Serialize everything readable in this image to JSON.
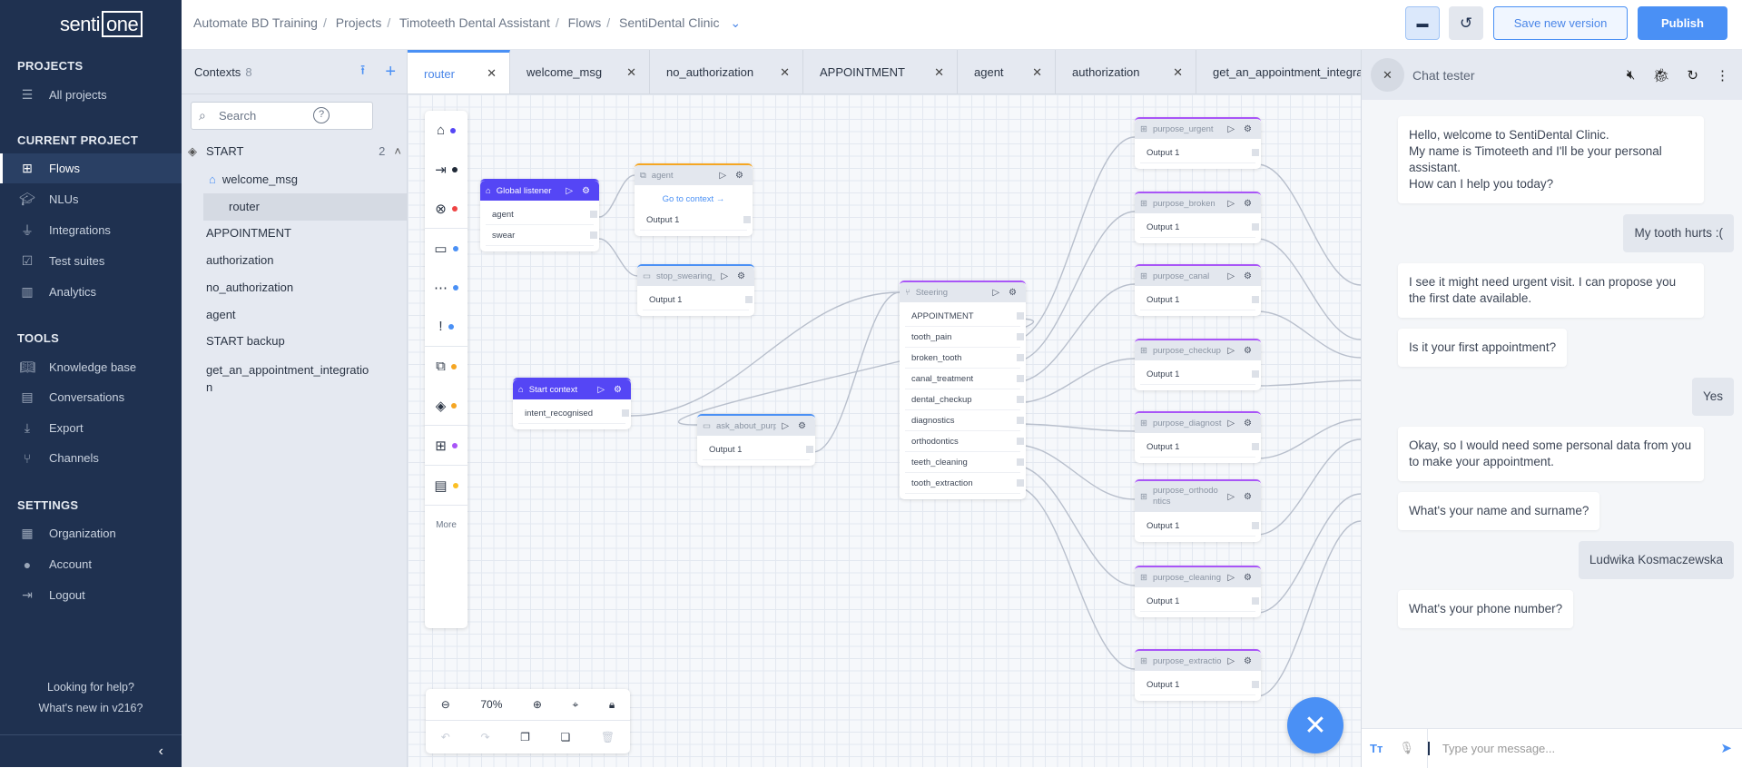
{
  "brand": {
    "logo_text_a": "senti",
    "logo_text_b": "one"
  },
  "sidebar": {
    "projects_heading": "PROJECTS",
    "all_projects": "All projects",
    "current_heading": "CURRENT PROJECT",
    "current_items": [
      {
        "label": "Flows",
        "icon": "flows-icon"
      },
      {
        "label": "NLUs",
        "icon": "graduation-cap-icon"
      },
      {
        "label": "Integrations",
        "icon": "plug-icon"
      },
      {
        "label": "Test suites",
        "icon": "test-suites-icon"
      },
      {
        "label": "Analytics",
        "icon": "analytics-icon"
      }
    ],
    "tools_heading": "TOOLS",
    "tools_items": [
      {
        "label": "Knowledge base",
        "icon": "book-icon"
      },
      {
        "label": "Conversations",
        "icon": "chat-icon"
      },
      {
        "label": "Export",
        "icon": "download-icon"
      },
      {
        "label": "Channels",
        "icon": "channels-icon"
      }
    ],
    "settings_heading": "SETTINGS",
    "settings_items": [
      {
        "label": "Organization",
        "icon": "building-icon"
      },
      {
        "label": "Account",
        "icon": "user-icon"
      },
      {
        "label": "Logout",
        "icon": "logout-icon"
      }
    ],
    "help": "Looking for help?",
    "whats_new": "What's new in v216?"
  },
  "header": {
    "breadcrumb": [
      "Automate BD Training",
      "Projects",
      "Timoteeth Dental Assistant",
      "Flows",
      "SentiDental Clinic"
    ],
    "save_label": "Save new version",
    "publish_label": "Publish"
  },
  "contexts": {
    "title": "Contexts",
    "count": "8",
    "search_placeholder": "Search",
    "group": "START",
    "group_count": "2",
    "group_items": [
      "welcome_msg",
      "router"
    ],
    "items": [
      "APPOINTMENT",
      "authorization",
      "no_authorization",
      "agent",
      "START backup",
      "get_an_appointment_integratio",
      "n"
    ]
  },
  "tabs": [
    "router",
    "welcome_msg",
    "no_authorization",
    "APPOINTMENT",
    "agent",
    "authorization",
    "get_an_appointment_integra"
  ],
  "canvas": {
    "palette_more": "More",
    "zoom_level": "70%",
    "nodes": {
      "global_listener": {
        "title": "Global listener",
        "rows": [
          "agent",
          "swear"
        ]
      },
      "agent": {
        "title": "agent",
        "link": "Go to context →",
        "rows": [
          "Output 1"
        ]
      },
      "stop_swearing": {
        "title": "stop_swearing_pls",
        "rows": [
          "Output 1"
        ]
      },
      "start_context": {
        "title": "Start context",
        "rows": [
          "intent_recognised"
        ]
      },
      "ask_about_purpose": {
        "title": "ask_about_purpose",
        "rows": [
          "Output 1"
        ]
      },
      "steering": {
        "title": "Steering",
        "rows": [
          "APPOINTMENT",
          "tooth_pain",
          "broken_tooth",
          "canal_treatment",
          "dental_checkup",
          "diagnostics",
          "orthodontics",
          "teeth_cleaning",
          "tooth_extraction"
        ]
      },
      "purpose_urgent": {
        "title": "purpose_urgent",
        "rows": [
          "Output 1"
        ]
      },
      "purpose_broken": {
        "title": "purpose_broken",
        "rows": [
          "Output 1"
        ]
      },
      "purpose_canal": {
        "title": "purpose_canal",
        "rows": [
          "Output 1"
        ]
      },
      "purpose_checkup": {
        "title": "purpose_checkup",
        "rows": [
          "Output 1"
        ]
      },
      "purpose_diagnostics": {
        "title": "purpose_diagnostics",
        "rows": [
          "Output 1"
        ]
      },
      "purpose_orthodontics": {
        "title": "purpose_orthodontics",
        "rows": [
          "Output 1"
        ]
      },
      "purpose_cleaning": {
        "title": "purpose_cleaning",
        "rows": [
          "Output 1"
        ]
      },
      "purpose_extraction": {
        "title": "purpose_extraction",
        "rows": [
          "Output 1"
        ]
      }
    }
  },
  "colors": {
    "sidebar": "#1f3150",
    "accent": "#4a90f5",
    "listener": "#5546f5",
    "purpose": "#a855f7",
    "agent": "#f5a623",
    "message": "#4a90f5"
  },
  "chat": {
    "title": "Chat tester",
    "input_placeholder": "Type your message...",
    "messages": [
      {
        "from": "bot",
        "text": "Hello, welcome to SentiDental Clinic.\nMy name is Timoteeth and I'll be your personal assistant.\nHow can I help you today?"
      },
      {
        "from": "user",
        "text": "My tooth hurts :("
      },
      {
        "from": "bot",
        "text": "I see it might need urgent visit. I can propose you the first date available."
      },
      {
        "from": "bot",
        "text": "Is it your first appointment?"
      },
      {
        "from": "user",
        "text": "Yes"
      },
      {
        "from": "bot",
        "text": "Okay, so I would need some personal data from you to make your appointment."
      },
      {
        "from": "bot",
        "text": "What's your name and surname?"
      },
      {
        "from": "user",
        "text": "Ludwika Kosmaczewska"
      },
      {
        "from": "bot",
        "text": "What's your phone number?"
      }
    ]
  }
}
